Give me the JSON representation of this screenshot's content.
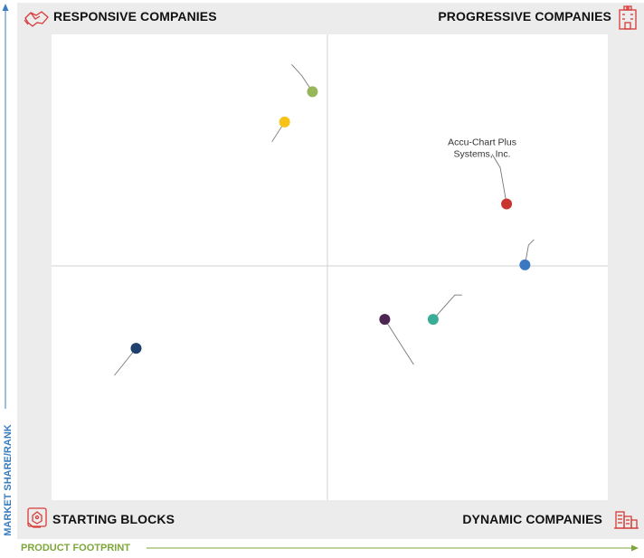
{
  "quadrants": {
    "top_left": "RESPONSIVE COMPANIES",
    "top_right": "PROGRESSIVE COMPANIES",
    "bottom_left": "STARTING BLOCKS",
    "bottom_right": "DYNAMIC COMPANIES"
  },
  "axes": {
    "y_label": "MARKET SHARE/RANK",
    "x_label": "PRODUCT FOOTPRINT"
  },
  "colors": {
    "panel_background": "#ececec",
    "plot_background": "#ffffff",
    "divider": "#d0d0d0",
    "leader_line": "#777777",
    "y_axis_accent": "#3b7dbf",
    "x_axis_accent": "#7ea63a",
    "icon_red": "#d83a36"
  },
  "icons": {
    "top_left": "handshake-icon",
    "top_right": "building-icon",
    "bottom_left": "puzzle-hand-icon",
    "bottom_right": "city-icon"
  },
  "chart_data": {
    "type": "scatter",
    "title": "",
    "xlabel": "PRODUCT FOOTPRINT",
    "ylabel": "MARKET SHARE/RANK",
    "xlim": [
      0,
      100
    ],
    "ylim": [
      0,
      100
    ],
    "grid": false,
    "points": [
      {
        "label": "",
        "x": 46.9,
        "y": 87.7,
        "color": "#97b75a"
      },
      {
        "label": "",
        "x": 41.9,
        "y": 81.2,
        "color": "#f7c318"
      },
      {
        "label": "Accu-Chart Plus Systems, Inc.",
        "x": 81.8,
        "y": 63.6,
        "color": "#c8352f"
      },
      {
        "label": "",
        "x": 85.1,
        "y": 50.5,
        "color": "#3a78c2"
      },
      {
        "label": "",
        "x": 68.6,
        "y": 38.8,
        "color": "#3aad98"
      },
      {
        "label": "",
        "x": 59.9,
        "y": 38.8,
        "color": "#4d2552"
      },
      {
        "label": "",
        "x": 15.2,
        "y": 32.6,
        "color": "#1f3f6e"
      }
    ]
  }
}
